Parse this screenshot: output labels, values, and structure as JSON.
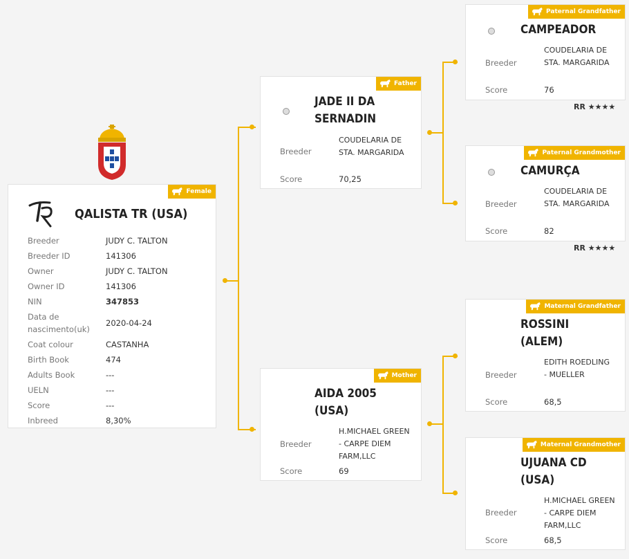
{
  "subject": {
    "badge": "Female",
    "name": "QALISTA TR (USA)",
    "fields": [
      {
        "label": "Breeder",
        "value": "JUDY C. TALTON"
      },
      {
        "label": "Breeder ID",
        "value": "141306"
      },
      {
        "label": "Owner",
        "value": "JUDY C. TALTON"
      },
      {
        "label": "Owner ID",
        "value": "141306"
      },
      {
        "label": "NIN",
        "value": "347853"
      },
      {
        "label": "Data de nascimento(uk)",
        "value": "2020-04-24"
      },
      {
        "label": "Coat colour",
        "value": "CASTANHA"
      },
      {
        "label": "Birth Book",
        "value": "474"
      },
      {
        "label": "Adults Book",
        "value": "---"
      },
      {
        "label": "UELN",
        "value": "---"
      },
      {
        "label": "Score",
        "value": "---"
      },
      {
        "label": "Inbreed",
        "value": "8,30%"
      }
    ]
  },
  "father": {
    "badge": "Father",
    "name": "JADE II DA SERNADIN",
    "breeder_label": "Breeder",
    "breeder": "COUDELARIA DE STA. MARGARIDA",
    "score_label": "Score",
    "score": "70,25"
  },
  "mother": {
    "badge": "Mother",
    "name": "AIDA 2005 (USA)",
    "breeder_label": "Breeder",
    "breeder": "H.MICHAEL GREEN - CARPE DIEM FARM,LLC",
    "score_label": "Score",
    "score": "69"
  },
  "paternal_grandfather": {
    "badge": "Paternal Grandfather",
    "name": "CAMPEADOR",
    "breeder_label": "Breeder",
    "breeder": "COUDELARIA DE STA. MARGARIDA",
    "score_label": "Score",
    "score": "76",
    "rating": "RR",
    "stars": 4
  },
  "paternal_grandmother": {
    "badge": "Paternal Grandmother",
    "name": "CAMURÇA",
    "breeder_label": "Breeder",
    "breeder": "COUDELARIA DE STA. MARGARIDA",
    "score_label": "Score",
    "score": "82",
    "rating": "RR",
    "stars": 4
  },
  "maternal_grandfather": {
    "badge": "Maternal Grandfather",
    "name": "ROSSINI (ALEM)",
    "breeder_label": "Breeder",
    "breeder": "EDITH ROEDLING - MUELLER",
    "score_label": "Score",
    "score": "68,5"
  },
  "maternal_grandmother": {
    "badge": "Maternal Grandmother",
    "name": "UJUANA CD (USA)",
    "breeder_label": "Breeder",
    "breeder": "H.MICHAEL GREEN - CARPE DIEM FARM,LLC",
    "score_label": "Score",
    "score": "68,5"
  },
  "icons": {
    "badge_icon": "horse-icon",
    "coat_of_arms": "coat-of-arms-icon",
    "brand_logo": "breeder-brand-logo",
    "thumbnail": "photo-placeholder-icon",
    "star": "star-icon"
  },
  "colors": {
    "accent": "#f0b400",
    "background": "#f4f4f4",
    "card": "#ffffff"
  }
}
